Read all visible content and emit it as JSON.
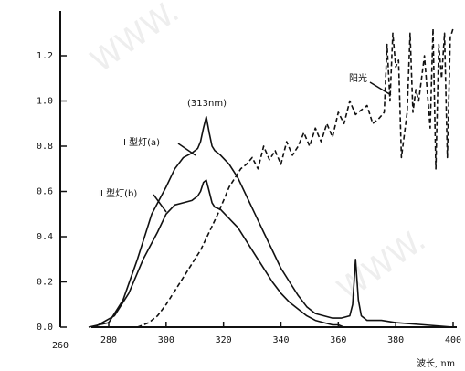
{
  "chart_data": {
    "type": "line",
    "xlabel": "波长, nm",
    "ylabel": "",
    "xlim": [
      260,
      400
    ],
    "ylim": [
      0,
      1.3
    ],
    "x_ticks": [
      260,
      280,
      300,
      320,
      340,
      360,
      380,
      400
    ],
    "y_ticks": [
      0.0,
      0.2,
      0.4,
      0.6,
      0.8,
      1.0,
      1.2
    ],
    "x_tick_labels": [
      "260",
      "280",
      "300",
      "320",
      "340",
      "360",
      "380",
      "400"
    ],
    "y_tick_labels": [
      "0.0",
      "0.2",
      "0.4",
      "0.6",
      "0.8",
      "1.0",
      "1.2"
    ],
    "grid": false,
    "annotations": {
      "peak": "(313nm)",
      "series_a": "Ⅰ 型灯(a)",
      "series_b": "Ⅱ 型灯(b)",
      "sun": "阳光"
    },
    "series": [
      {
        "name": "Ⅰ 型灯(a)",
        "style": "solid",
        "x": [
          273,
          280,
          285,
          290,
          295,
          300,
          303,
          306,
          309,
          311,
          312,
          313,
          314,
          315,
          316,
          317,
          319,
          322,
          325,
          328,
          331,
          334,
          337,
          340,
          343,
          346,
          349,
          352,
          355,
          358,
          361,
          364,
          365,
          366,
          367,
          368,
          370,
          375,
          380,
          390,
          400
        ],
        "y": [
          0.0,
          0.02,
          0.12,
          0.3,
          0.5,
          0.62,
          0.7,
          0.75,
          0.77,
          0.79,
          0.82,
          0.88,
          0.93,
          0.86,
          0.8,
          0.78,
          0.76,
          0.72,
          0.66,
          0.58,
          0.5,
          0.42,
          0.34,
          0.26,
          0.2,
          0.14,
          0.09,
          0.06,
          0.05,
          0.04,
          0.04,
          0.05,
          0.1,
          0.3,
          0.12,
          0.05,
          0.03,
          0.03,
          0.02,
          0.01,
          0.0
        ]
      },
      {
        "name": "Ⅱ 型灯(b)",
        "style": "solid",
        "x": [
          275,
          282,
          287,
          292,
          297,
          300,
          303,
          306,
          309,
          311,
          312,
          313,
          314,
          315,
          316,
          317,
          319,
          322,
          325,
          328,
          331,
          334,
          337,
          340,
          343,
          346,
          349,
          352,
          355,
          358,
          360,
          362
        ],
        "y": [
          0.0,
          0.05,
          0.15,
          0.3,
          0.42,
          0.5,
          0.54,
          0.55,
          0.56,
          0.58,
          0.6,
          0.64,
          0.65,
          0.6,
          0.55,
          0.53,
          0.52,
          0.48,
          0.44,
          0.38,
          0.32,
          0.26,
          0.2,
          0.15,
          0.11,
          0.08,
          0.05,
          0.03,
          0.02,
          0.01,
          0.01,
          0.0
        ]
      },
      {
        "name": "阳光",
        "style": "dashed",
        "x": [
          290,
          294,
          297,
          300,
          303,
          306,
          309,
          312,
          315,
          318,
          320,
          322,
          324,
          326,
          328,
          330,
          332,
          334,
          336,
          338,
          340,
          342,
          344,
          346,
          348,
          350,
          352,
          354,
          356,
          358,
          360,
          362,
          364,
          366,
          368,
          370,
          372,
          374,
          376,
          377,
          378,
          379,
          380,
          381,
          382,
          384,
          385,
          386,
          387,
          388,
          390,
          392,
          393,
          394,
          395,
          396,
          397,
          398,
          399,
          400
        ],
        "y": [
          0.0,
          0.02,
          0.05,
          0.1,
          0.16,
          0.22,
          0.28,
          0.34,
          0.42,
          0.5,
          0.56,
          0.62,
          0.66,
          0.7,
          0.72,
          0.75,
          0.7,
          0.8,
          0.74,
          0.78,
          0.72,
          0.82,
          0.76,
          0.8,
          0.86,
          0.8,
          0.88,
          0.82,
          0.9,
          0.84,
          0.95,
          0.9,
          1.0,
          0.94,
          0.96,
          0.98,
          0.9,
          0.92,
          0.95,
          1.25,
          1.0,
          1.3,
          1.15,
          1.18,
          0.75,
          0.95,
          1.3,
          0.95,
          1.05,
          1.0,
          1.2,
          0.88,
          1.32,
          0.7,
          1.25,
          1.1,
          1.3,
          0.75,
          1.28,
          1.32
        ]
      }
    ]
  }
}
